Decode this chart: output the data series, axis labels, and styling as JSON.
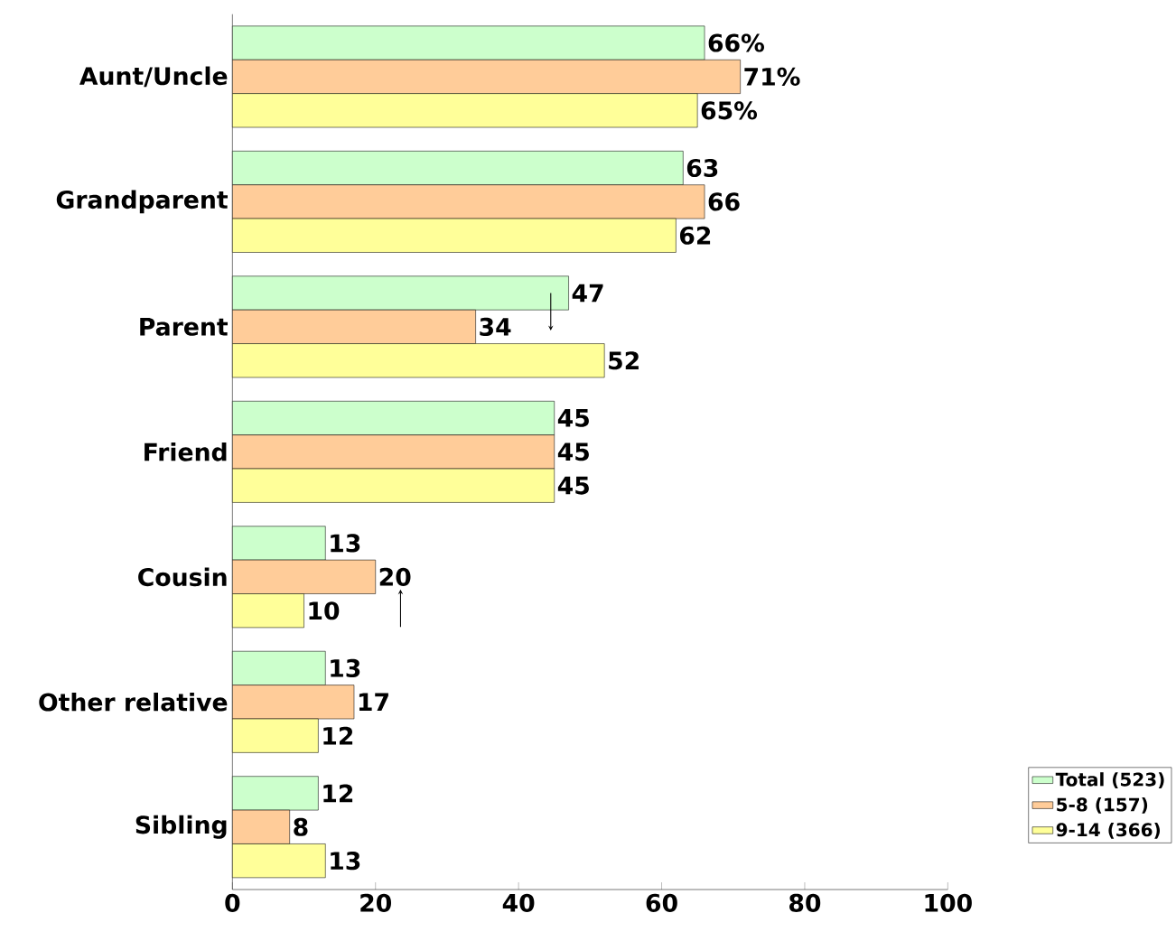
{
  "chart_data": {
    "type": "bar",
    "orientation": "horizontal",
    "categories": [
      "Aunt/Uncle",
      "Grandparent",
      "Parent",
      "Friend",
      "Cousin",
      "Other relative",
      "Sibling"
    ],
    "series": [
      {
        "name": "Total (523)",
        "color": "#ccffcc",
        "values": [
          66,
          63,
          47,
          45,
          13,
          13,
          12
        ],
        "value_labels": [
          "66%",
          "63",
          "47",
          "45",
          "13",
          "13",
          "12"
        ]
      },
      {
        "name": "5-8 (157)",
        "color": "#ffcc99",
        "values": [
          71,
          66,
          34,
          45,
          20,
          17,
          8
        ],
        "value_labels": [
          "71%",
          "66",
          "34",
          "45",
          "20",
          "17",
          "8"
        ]
      },
      {
        "name": "9-14 (366)",
        "color": "#ffff99",
        "values": [
          65,
          62,
          52,
          45,
          10,
          12,
          13
        ],
        "value_labels": [
          "65%",
          "62",
          "52",
          "45",
          "10",
          "12",
          "13"
        ]
      }
    ],
    "xlim": [
      0,
      100
    ],
    "xticks": [
      0,
      20,
      40,
      60,
      80,
      100
    ],
    "legend": "bottom right"
  }
}
